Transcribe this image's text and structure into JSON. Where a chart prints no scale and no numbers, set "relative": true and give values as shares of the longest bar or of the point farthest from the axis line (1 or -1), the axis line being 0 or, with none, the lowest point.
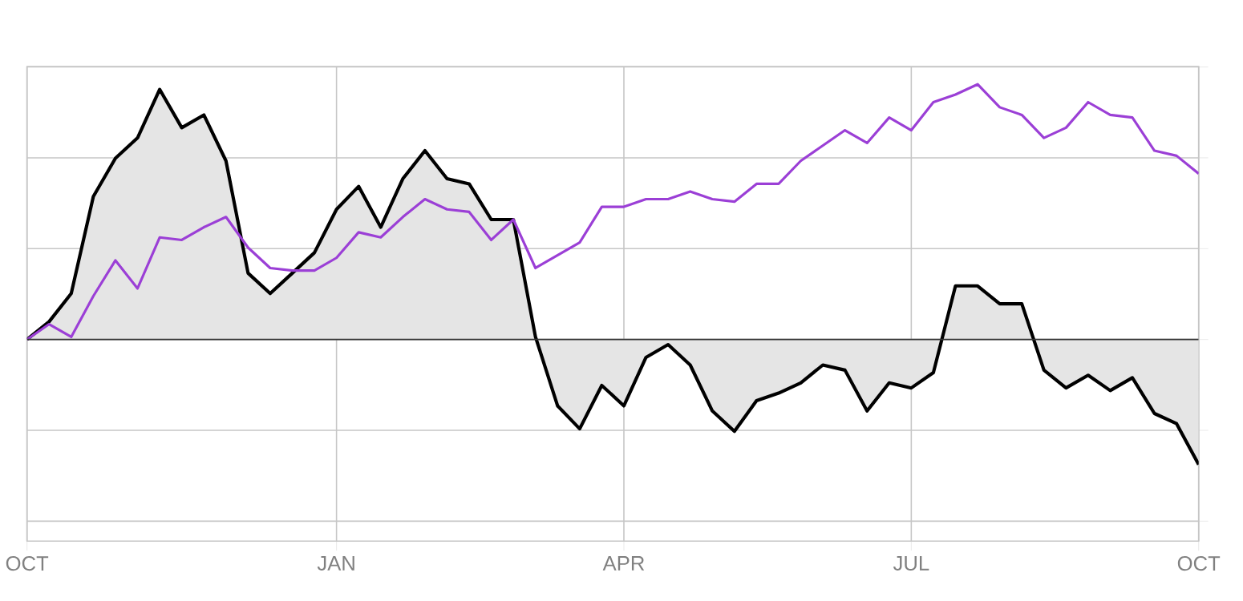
{
  "chart_data": {
    "type": "line",
    "relative": true,
    "grid": true,
    "tick_labels": "x",
    "marker": "none",
    "categories": [
      "OCT",
      null,
      null,
      null,
      null,
      null,
      null,
      null,
      null,
      null,
      null,
      null,
      null,
      null,
      "JAN",
      null,
      null,
      null,
      null,
      null,
      null,
      null,
      null,
      null,
      null,
      null,
      null,
      "APR",
      null,
      null,
      null,
      null,
      null,
      null,
      null,
      null,
      null,
      null,
      null,
      null,
      "JUL",
      null,
      null,
      null,
      null,
      null,
      null,
      null,
      null,
      null,
      null,
      null,
      null,
      "OCT"
    ],
    "series": [
      {
        "color": "#000000",
        "values": [
          0,
          0.07,
          0.18,
          0.56,
          0.71,
          0.79,
          0.98,
          0.83,
          0.88,
          0.7,
          0.26,
          0.18,
          0.26,
          0.34,
          0.51,
          0.6,
          0.44,
          0.63,
          0.74,
          0.63,
          0.61,
          0.47,
          0.47,
          0.01,
          -0.26,
          -0.35,
          -0.18,
          -0.26,
          -0.07,
          -0.02,
          -0.1,
          -0.28,
          -0.36,
          -0.24,
          -0.21,
          -0.17,
          -0.1,
          -0.12,
          -0.28,
          -0.17,
          -0.19,
          -0.13,
          0.21,
          0.21,
          0.14,
          0.14,
          -0.12,
          -0.19,
          -0.14,
          -0.2,
          -0.15,
          -0.29,
          -0.33,
          -0.49
        ],
        "lower": [
          0,
          0,
          0,
          0,
          0,
          0,
          0,
          0,
          0,
          0,
          0,
          0,
          0,
          0,
          0,
          0,
          0,
          0,
          0,
          0,
          0,
          0,
          0,
          0,
          0,
          0,
          0,
          0,
          0,
          0,
          0,
          0,
          0,
          0,
          0,
          0,
          0,
          0,
          0,
          0,
          0,
          0,
          0,
          0,
          0,
          0,
          0,
          0,
          0,
          0,
          0,
          0,
          0,
          0
        ],
        "upper": [
          0,
          0.07,
          0.18,
          0.56,
          0.71,
          0.79,
          0.98,
          0.83,
          0.88,
          0.7,
          0.26,
          0.18,
          0.26,
          0.34,
          0.51,
          0.6,
          0.44,
          0.63,
          0.74,
          0.63,
          0.61,
          0.47,
          0.47,
          0.01,
          -0.26,
          -0.35,
          -0.18,
          -0.26,
          -0.07,
          -0.02,
          -0.1,
          -0.28,
          -0.36,
          -0.24,
          -0.21,
          -0.17,
          -0.1,
          -0.12,
          -0.28,
          -0.17,
          -0.19,
          -0.13,
          0.21,
          0.21,
          0.14,
          0.14,
          -0.12,
          -0.19,
          -0.14,
          -0.2,
          -0.15,
          -0.29,
          -0.33,
          -0.49
        ]
      },
      {
        "color": "#9b3fd6",
        "values": [
          0,
          0.06,
          0.01,
          0.17,
          0.31,
          0.2,
          0.4,
          0.39,
          0.44,
          0.48,
          0.36,
          0.28,
          0.27,
          0.27,
          0.32,
          0.42,
          0.4,
          0.48,
          0.55,
          0.51,
          0.5,
          0.39,
          0.47,
          0.28,
          0.33,
          0.38,
          0.52,
          0.52,
          0.55,
          0.55,
          0.58,
          0.55,
          0.54,
          0.61,
          0.61,
          0.7,
          0.76,
          0.82,
          0.77,
          0.87,
          0.82,
          0.93,
          0.96,
          1.0,
          0.91,
          0.88,
          0.79,
          0.83,
          0.93,
          0.88,
          0.87,
          0.74,
          0.72,
          0.65
        ]
      }
    ]
  }
}
